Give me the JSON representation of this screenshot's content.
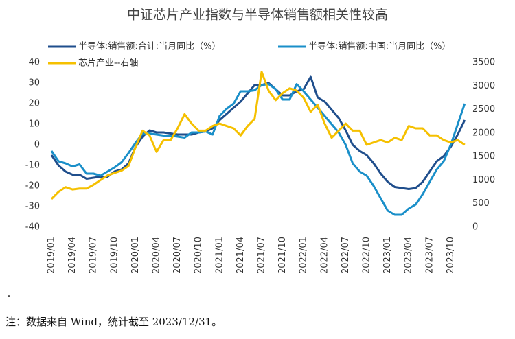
{
  "chart_data": {
    "type": "line",
    "title": "中证芯片产业指数与半导体销售额相关性较高",
    "categories": [
      "2019/01",
      null,
      null,
      "2019/04",
      null,
      null,
      "2019/07",
      null,
      null,
      "2019/10",
      null,
      null,
      "2020/01",
      null,
      null,
      "2020/04",
      null,
      null,
      "2020/07",
      null,
      null,
      "2020/10",
      null,
      null,
      "2021/01",
      null,
      null,
      "2021/04",
      null,
      null,
      "2021/07",
      null,
      null,
      "2021/10",
      null,
      null,
      "2022/01",
      null,
      null,
      "2022/04",
      null,
      null,
      "2022/07",
      null,
      null,
      "2022/10",
      null,
      null,
      "2023/01",
      null,
      null,
      "2023/04",
      null,
      null,
      "2023/07",
      null,
      null,
      "2023/10",
      null,
      null
    ],
    "series": [
      {
        "name": "半导体:销售额:合计:当月同比（%）",
        "color": "#1f4e8c",
        "axis": "y",
        "values": [
          -5,
          -10,
          -13,
          -14.5,
          -14.5,
          -16.5,
          -16,
          -15.5,
          -15.5,
          -13,
          -12,
          -9,
          -1,
          4,
          7,
          6,
          6,
          5.5,
          5,
          5,
          5,
          6,
          6.5,
          8,
          12,
          15,
          18,
          21,
          25,
          29,
          29,
          30,
          27,
          24,
          24,
          26,
          27,
          33,
          23,
          21,
          17,
          13,
          7,
          0,
          -3,
          -5,
          -9,
          -14,
          -18,
          -20.5,
          -21,
          -21.5,
          -21,
          -18,
          -13,
          -8,
          -5.5,
          -1,
          5,
          12
        ]
      },
      {
        "name": "半导体:销售额:中国:当月同比（%）",
        "color": "#1a8fc9",
        "axis": "y",
        "values": [
          -3,
          -8,
          -9,
          -10.5,
          -9.5,
          -14,
          -14,
          -15,
          -13,
          -11,
          -8.5,
          -4,
          1,
          5.5,
          5.5,
          5,
          4.5,
          4.5,
          4,
          3.5,
          6,
          6,
          6.5,
          5,
          14,
          17.5,
          20,
          26,
          26,
          26.5,
          29,
          29.5,
          27,
          22,
          22,
          29.5,
          26,
          22,
          18,
          14,
          10,
          6,
          0,
          -9,
          -13,
          -15,
          -20,
          -26,
          -32,
          -34,
          -34,
          -31,
          -29,
          -24,
          -18,
          -12,
          -8,
          0,
          10,
          20
        ]
      },
      {
        "name": "芯片产业--右轴",
        "color": "#f5c000",
        "axis": "y2",
        "values": [
          600,
          750,
          850,
          800,
          820,
          820,
          900,
          1000,
          1100,
          1150,
          1200,
          1300,
          1700,
          2050,
          1950,
          1600,
          1850,
          1850,
          2100,
          2400,
          2200,
          2050,
          2050,
          2150,
          2200,
          2150,
          2100,
          1950,
          2150,
          2300,
          3300,
          2900,
          2700,
          2850,
          2950,
          2900,
          2750,
          2450,
          2600,
          2200,
          1900,
          2050,
          2200,
          2050,
          2050,
          1750,
          1800,
          1850,
          1800,
          1900,
          1850,
          2150,
          2100,
          2100,
          1950,
          1950,
          1850,
          1800,
          1850,
          1750
        ]
      }
    ],
    "ylim": [
      -40,
      40
    ],
    "yticks": [
      40,
      30,
      20,
      10,
      0,
      -10,
      -20,
      -30,
      -40
    ],
    "y2lim": [
      0,
      3500
    ],
    "y2ticks": [
      3500,
      3000,
      2500,
      2000,
      1500,
      1000,
      500,
      0
    ],
    "note": "注：数据来自 Wind，统计截至 2023/12/31。"
  }
}
